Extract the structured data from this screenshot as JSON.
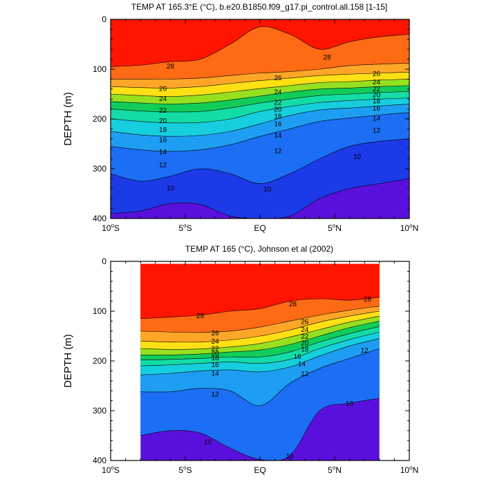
{
  "chart_data": [
    {
      "type": "contour",
      "title": "TEMP AT 165.3°E (°C), b.e20.B1850.f09_g17.pi_control.all.158 [1-15]",
      "ylabel": "DEPTH (m)",
      "xlim": [
        -10,
        10
      ],
      "ylim": [
        400,
        0
      ],
      "data_xlim": [
        -10,
        10
      ],
      "x_ticks": [
        {
          "value": -10,
          "label": "10°S"
        },
        {
          "value": -5,
          "label": "5°S"
        },
        {
          "value": 0,
          "label": "EQ"
        },
        {
          "value": 5,
          "label": "5°N"
        },
        {
          "value": 10,
          "label": "10°N"
        }
      ],
      "y_ticks": [
        0,
        100,
        200,
        300,
        400
      ],
      "depth_of_isotherm": {
        "lat": [
          -10,
          -8,
          -6,
          -4,
          -2,
          0,
          2,
          4,
          6,
          8,
          10
        ],
        "28": [
          95,
          92,
          85,
          80,
          50,
          15,
          30,
          60,
          45,
          35,
          30
        ],
        "26": [
          120,
          120,
          120,
          118,
          113,
          108,
          105,
          100,
          93,
          90,
          88
        ],
        "24": [
          135,
          137,
          138,
          135,
          129,
          123,
          118,
          113,
          110,
          108,
          106
        ],
        "22": [
          150,
          153,
          155,
          152,
          146,
          139,
          133,
          127,
          125,
          122,
          120
        ],
        "20": [
          165,
          168,
          170,
          168,
          162,
          154,
          146,
          140,
          138,
          135,
          133
        ],
        "18": [
          180,
          184,
          186,
          185,
          178,
          168,
          160,
          153,
          150,
          147,
          145
        ],
        "16": [
          200,
          205,
          208,
          207,
          200,
          185,
          175,
          167,
          163,
          160,
          158
        ],
        "14": [
          225,
          232,
          235,
          233,
          225,
          210,
          193,
          182,
          178,
          174,
          170
        ],
        "12": [
          255,
          262,
          265,
          262,
          252,
          235,
          220,
          205,
          198,
          192,
          187
        ],
        "10": [
          310,
          325,
          315,
          300,
          310,
          330,
          310,
          280,
          255,
          245,
          240
        ],
        "8": [
          390,
          385,
          370,
          372,
          395,
          400,
          395,
          360,
          340,
          330,
          320
        ]
      },
      "labels": [
        {
          "value": 28,
          "lat": -6,
          "depth": 93
        },
        {
          "value": 28,
          "lat": 4.5,
          "depth": 75
        },
        {
          "value": 26,
          "lat": -6.5,
          "depth": 138
        },
        {
          "value": 26,
          "lat": 1.2,
          "depth": 117
        },
        {
          "value": 26,
          "lat": 7.8,
          "depth": 108
        },
        {
          "value": 24,
          "lat": -6.5,
          "depth": 158
        },
        {
          "value": 24,
          "lat": 1.2,
          "depth": 145
        },
        {
          "value": 24,
          "lat": 7.8,
          "depth": 125
        },
        {
          "value": 22,
          "lat": -6.5,
          "depth": 182
        },
        {
          "value": 22,
          "lat": 1.2,
          "depth": 166
        },
        {
          "value": 22,
          "lat": 7.8,
          "depth": 139
        },
        {
          "value": 20,
          "lat": -6.5,
          "depth": 203
        },
        {
          "value": 20,
          "lat": 1.2,
          "depth": 180
        },
        {
          "value": 20,
          "lat": 7.8,
          "depth": 151
        },
        {
          "value": 18,
          "lat": -6.5,
          "depth": 221
        },
        {
          "value": 18,
          "lat": 1.2,
          "depth": 194
        },
        {
          "value": 18,
          "lat": 7.8,
          "depth": 163
        },
        {
          "value": 16,
          "lat": -6.5,
          "depth": 241
        },
        {
          "value": 16,
          "lat": 1.2,
          "depth": 209
        },
        {
          "value": 16,
          "lat": 7.8,
          "depth": 178
        },
        {
          "value": 14,
          "lat": -6.5,
          "depth": 265
        },
        {
          "value": 14,
          "lat": 1.2,
          "depth": 232
        },
        {
          "value": 14,
          "lat": 7.8,
          "depth": 198
        },
        {
          "value": 12,
          "lat": -6.5,
          "depth": 292
        },
        {
          "value": 12,
          "lat": 1.2,
          "depth": 263
        },
        {
          "value": 12,
          "lat": 7.8,
          "depth": 222
        },
        {
          "value": 10,
          "lat": -6,
          "depth": 338
        },
        {
          "value": 10,
          "lat": 0.5,
          "depth": 340
        },
        {
          "value": 10,
          "lat": 6.5,
          "depth": 275
        }
      ]
    },
    {
      "type": "contour",
      "title": "TEMP AT 165 (°C), Johnson et al (2002)",
      "ylabel": "DEPTH (m)",
      "xlim": [
        -10,
        10
      ],
      "ylim": [
        400,
        0
      ],
      "data_xlim": [
        -8,
        8
      ],
      "x_ticks": [
        {
          "value": -10,
          "label": "10°S"
        },
        {
          "value": -5,
          "label": "5°S"
        },
        {
          "value": 0,
          "label": "EQ"
        },
        {
          "value": 5,
          "label": "5°N"
        },
        {
          "value": 10,
          "label": "10°N"
        }
      ],
      "y_ticks": [
        0,
        100,
        200,
        300,
        400
      ],
      "depth_of_isotherm": {
        "lat": [
          -8,
          -6,
          -4,
          -2,
          0,
          2,
          4,
          6,
          8
        ],
        "28": [
          115,
          112,
          108,
          100,
          95,
          80,
          75,
          78,
          72
        ],
        "26": [
          140,
          142,
          143,
          140,
          132,
          120,
          108,
          98,
          90
        ],
        "24": [
          160,
          162,
          162,
          158,
          150,
          138,
          122,
          110,
          100
        ],
        "22": [
          175,
          177,
          176,
          172,
          165,
          152,
          137,
          122,
          110
        ],
        "20": [
          188,
          188,
          186,
          182,
          178,
          167,
          150,
          133,
          120
        ],
        "18": [
          198,
          197,
          195,
          192,
          192,
          182,
          162,
          145,
          131
        ],
        "16": [
          210,
          208,
          205,
          202,
          205,
          197,
          175,
          157,
          142
        ],
        "14": [
          228,
          225,
          220,
          218,
          222,
          212,
          190,
          170,
          155
        ],
        "12": [
          262,
          262,
          255,
          260,
          290,
          245,
          215,
          195,
          175
        ],
        "10": [
          350,
          340,
          345,
          375,
          398,
          390,
          300,
          285,
          275
        ]
      },
      "labels": [
        {
          "value": 28,
          "lat": -4,
          "depth": 108
        },
        {
          "value": 28,
          "lat": 2.2,
          "depth": 85
        },
        {
          "value": 28,
          "lat": 7.2,
          "depth": 75
        },
        {
          "value": 26,
          "lat": -3,
          "depth": 143
        },
        {
          "value": 26,
          "lat": 3,
          "depth": 120
        },
        {
          "value": 24,
          "lat": -3,
          "depth": 160
        },
        {
          "value": 24,
          "lat": 3,
          "depth": 136
        },
        {
          "value": 22,
          "lat": -3,
          "depth": 174
        },
        {
          "value": 22,
          "lat": 3,
          "depth": 150
        },
        {
          "value": 20,
          "lat": -3,
          "depth": 185
        },
        {
          "value": 20,
          "lat": 3,
          "depth": 163
        },
        {
          "value": 18,
          "lat": -3,
          "depth": 193
        },
        {
          "value": 18,
          "lat": 3,
          "depth": 176
        },
        {
          "value": 16,
          "lat": -3,
          "depth": 207
        },
        {
          "value": 16,
          "lat": 2.5,
          "depth": 190
        },
        {
          "value": 14,
          "lat": -3,
          "depth": 224
        },
        {
          "value": 14,
          "lat": 2.8,
          "depth": 205
        },
        {
          "value": 12,
          "lat": -3,
          "depth": 266
        },
        {
          "value": 12,
          "lat": 3,
          "depth": 225
        },
        {
          "value": 12,
          "lat": 7,
          "depth": 178
        },
        {
          "value": 10,
          "lat": -3.5,
          "depth": 362
        },
        {
          "value": 10,
          "lat": 2,
          "depth": 390
        },
        {
          "value": 10,
          "lat": 6,
          "depth": 285
        }
      ]
    }
  ],
  "colors": {
    "levels": [
      8,
      10,
      12,
      14,
      16,
      18,
      20,
      22,
      24,
      26,
      28
    ],
    "bands": [
      "#5a10dc",
      "#1c3ae8",
      "#1c6ef4",
      "#1e9ef2",
      "#16cede",
      "#14dca6",
      "#12cc5a",
      "#96e020",
      "#ffe014",
      "#ffa628",
      "#ff6a14",
      "#ff1400"
    ]
  }
}
